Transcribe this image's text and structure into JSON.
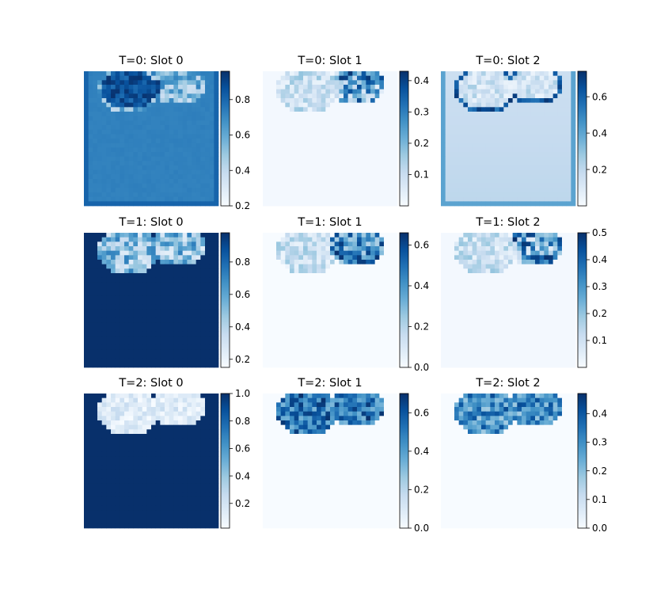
{
  "chart_data": {
    "type": "heatmap",
    "colormap": "Blues",
    "colors": {
      "low": "#f7fbff",
      "high": "#08306b"
    },
    "grid": "off",
    "panels": [
      {
        "title": "T=0: Slot 0",
        "pattern": "base",
        "vmin": 0.2,
        "vmax": 0.96,
        "cbar_ticks": [
          0.2,
          0.4,
          0.6,
          0.8
        ]
      },
      {
        "title": "T=0: Slot 1",
        "pattern": "rim",
        "vmin": 0.0,
        "vmax": 0.43,
        "cbar_ticks": [
          0.1,
          0.2,
          0.3,
          0.4
        ]
      },
      {
        "title": "T=0: Slot 2",
        "pattern": "frame",
        "vmin": 0.0,
        "vmax": 0.74,
        "cbar_ticks": [
          0.2,
          0.4,
          0.6
        ]
      },
      {
        "title": "T=1: Slot 0",
        "pattern": "bg",
        "vmin": 0.15,
        "vmax": 0.98,
        "cbar_ticks": [
          0.2,
          0.4,
          0.6,
          0.8
        ]
      },
      {
        "title": "T=1: Slot 1",
        "pattern": "right",
        "vmin": 0.0,
        "vmax": 0.66,
        "cbar_ticks": [
          0.0,
          0.2,
          0.4,
          0.6
        ]
      },
      {
        "title": "T=1: Slot 2",
        "pattern": "rim",
        "vmin": 0.0,
        "vmax": 0.5,
        "cbar_ticks": [
          0.1,
          0.2,
          0.3,
          0.4,
          0.5
        ]
      },
      {
        "title": "T=2: Slot 0",
        "pattern": "bg2",
        "vmin": 0.02,
        "vmax": 1.0,
        "cbar_ticks": [
          0.2,
          0.4,
          0.6,
          0.8,
          1.0
        ]
      },
      {
        "title": "T=2: Slot 1",
        "pattern": "fill",
        "vmin": 0.0,
        "vmax": 0.7,
        "cbar_ticks": [
          0.0,
          0.2,
          0.4,
          0.6
        ]
      },
      {
        "title": "T=2: Slot 2",
        "pattern": "fill2",
        "vmin": 0.0,
        "vmax": 0.47,
        "cbar_ticks": [
          0.0,
          0.1,
          0.2,
          0.3,
          0.4
        ]
      }
    ]
  }
}
